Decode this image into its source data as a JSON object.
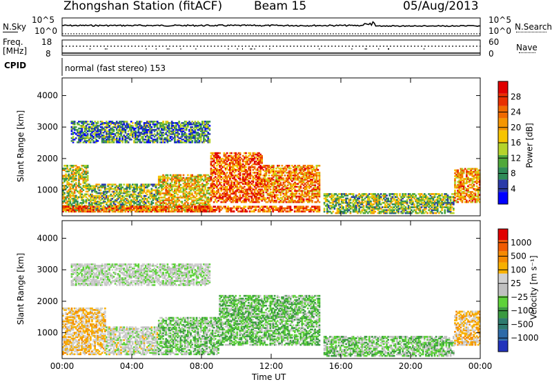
{
  "header": {
    "station": "Zhongshan Station (fitACF)",
    "beam": "Beam 15",
    "date": "05/Aug/2013"
  },
  "mini_panels": {
    "nsky_label": "N.Sky",
    "nsky_ticks": [
      "10^5",
      "10^0"
    ],
    "nsearch_label": "N.Search",
    "nsearch_ticks": [
      "10^5",
      "10^0"
    ],
    "freq_label_1": "Freq.",
    "freq_label_2": "[MHz]",
    "freq_ticks": [
      "18",
      "8"
    ],
    "nave_label": "Nave",
    "nave_ticks": [
      "60",
      "0"
    ],
    "cpid_label": "CPID",
    "cpid_text": "normal (fast stereo) 153"
  },
  "colors": {
    "power": [
      "#0000ff",
      "#2a3aa8",
      "#2e8b57",
      "#4fa83a",
      "#b5d32a",
      "#f6c400",
      "#f59600",
      "#f06a00",
      "#e83000",
      "#e00000"
    ],
    "velocity": [
      "#2233bb",
      "#2d6aa8",
      "#2e7a6e",
      "#3a9a40",
      "#5ed23a",
      "#c0c0c0",
      "#d0d0d0",
      "#f7b000",
      "#f58a00",
      "#f05a00",
      "#e00000"
    ]
  },
  "chart_data": [
    {
      "type": "heatmap",
      "title": "Power",
      "xlabel": "Time UT",
      "ylabel": "Slant Range [km]",
      "colorbar_label": "Power [dB]",
      "colorbar_ticks": [
        "28",
        "24",
        "20",
        "16",
        "12",
        "8",
        "4"
      ],
      "clim": [
        0,
        30
      ],
      "x_ticks": [
        "00:00",
        "04:00",
        "08:00",
        "12:00",
        "16:00",
        "20:00",
        "00:00"
      ],
      "y_ticks": [
        "4000",
        "3000",
        "2000",
        "1000"
      ],
      "xlim_hours": [
        0,
        24
      ],
      "ylim_km": [
        180,
        4560
      ],
      "echo_regions": [
        {
          "t": [
            0,
            1.5
          ],
          "range_km": [
            300,
            1800
          ],
          "value": 14
        },
        {
          "t": [
            1.5,
            5.5
          ],
          "range_km": [
            300,
            1200
          ],
          "value": 12
        },
        {
          "t": [
            5.5,
            8.5
          ],
          "range_km": [
            300,
            1500
          ],
          "value": 17
        },
        {
          "t": [
            8.5,
            11.5
          ],
          "range_km": [
            600,
            2200
          ],
          "value": 23
        },
        {
          "t": [
            11.5,
            14.8
          ],
          "range_km": [
            600,
            1800
          ],
          "value": 21
        },
        {
          "t": [
            0,
            14.8
          ],
          "range_km": [
            300,
            500
          ],
          "value": 24
        },
        {
          "t": [
            0.5,
            8.5
          ],
          "range_km": [
            2500,
            3200
          ],
          "value": 8
        },
        {
          "t": [
            15,
            22.5
          ],
          "range_km": [
            250,
            900
          ],
          "value": 12
        },
        {
          "t": [
            22.5,
            24
          ],
          "range_km": [
            600,
            1700
          ],
          "value": 20
        }
      ]
    },
    {
      "type": "heatmap",
      "title": "Velocity",
      "xlabel": "Time UT",
      "ylabel": "Slant Range [km]",
      "colorbar_label": "Velocity [m s⁻¹]",
      "colorbar_ticks": [
        "1000",
        "500",
        "100",
        "25",
        "−25",
        "−100",
        "−500",
        "−1000"
      ],
      "clim": [
        -1000,
        1000
      ],
      "x_ticks": [
        "00:00",
        "04:00",
        "08:00",
        "12:00",
        "16:00",
        "20:00",
        "00:00"
      ],
      "y_ticks": [
        "4000",
        "3000",
        "2000",
        "1000"
      ],
      "xlim_hours": [
        0,
        24
      ],
      "ylim_km": [
        180,
        4560
      ],
      "echo_regions": [
        {
          "t": [
            0,
            2.5
          ],
          "range_km": [
            300,
            1800
          ],
          "value": 300
        },
        {
          "t": [
            2.5,
            5.5
          ],
          "range_km": [
            300,
            1200
          ],
          "value": 50
        },
        {
          "t": [
            5.5,
            9
          ],
          "range_km": [
            300,
            1500
          ],
          "value": -150
        },
        {
          "t": [
            9,
            14.8
          ],
          "range_km": [
            600,
            2200
          ],
          "value": -200
        },
        {
          "t": [
            0.5,
            8.5
          ],
          "range_km": [
            2500,
            3200
          ],
          "value": 0
        },
        {
          "t": [
            15,
            22.5
          ],
          "range_km": [
            250,
            900
          ],
          "value": -150
        },
        {
          "t": [
            22.5,
            24
          ],
          "range_km": [
            600,
            1700
          ],
          "value": 300
        }
      ]
    }
  ]
}
